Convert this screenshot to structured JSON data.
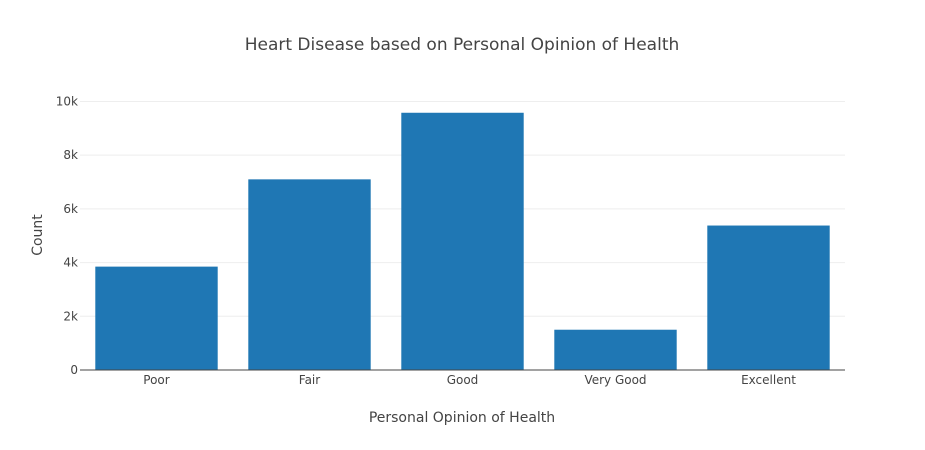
{
  "chart_data": {
    "type": "bar",
    "title": "Heart Disease based on Personal Opinion of Health",
    "xlabel": "Personal Opinion of Health",
    "ylabel": "Count",
    "categories": [
      "Poor",
      "Fair",
      "Good",
      "Very Good",
      "Excellent"
    ],
    "values": [
      3850,
      7100,
      9580,
      1500,
      5380
    ],
    "ylim": [
      0,
      10800
    ],
    "yticks": [
      0,
      2000,
      4000,
      6000,
      8000,
      10000
    ],
    "ytick_labels": [
      "0",
      "2k",
      "4k",
      "6k",
      "8k",
      "10k"
    ],
    "grid": true,
    "colors": {
      "bar": "#1f77b4",
      "grid": "#eeeeee",
      "axis": "#444444",
      "text": "#444444"
    }
  }
}
